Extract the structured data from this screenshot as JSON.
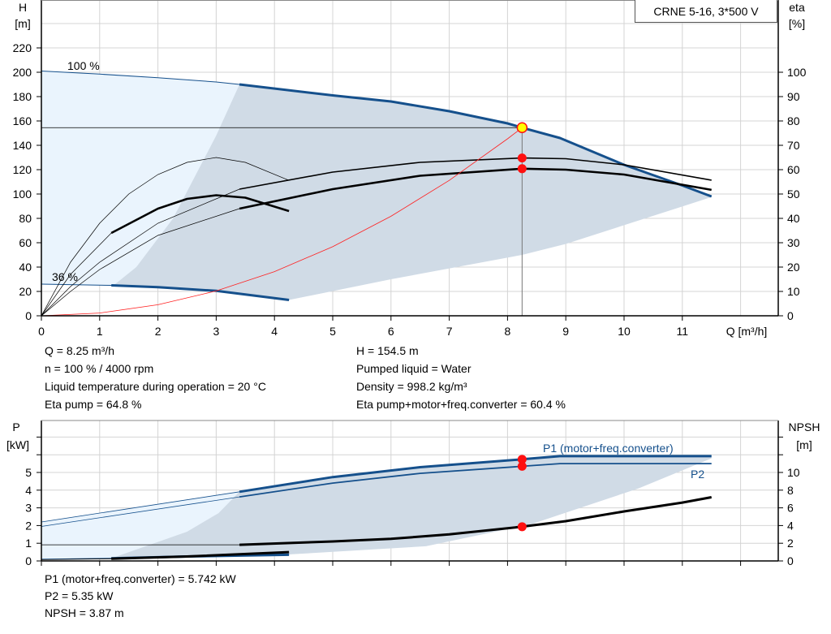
{
  "colors": {
    "pump_curve": "#15508c",
    "efficiency": "#000000",
    "system_curve": "#ff2020",
    "duty_point": "#ff1010",
    "duty_point_fill": "#ffff00",
    "operating_area": "#d0dbe6",
    "extended_area": "#eaf4fd",
    "grid": "#d4d4d4"
  },
  "chart_data": [
    {
      "type": "line",
      "title": "CRNE 5-16, 3*500 V",
      "xlabel": "Q [m³/h]",
      "ylabel": "H\n[m]",
      "ylabel_line1": "H",
      "ylabel_line2": "[m]",
      "y2label_line1": "eta",
      "y2label_line2": "[%]",
      "xlim": [
        0,
        12.6
      ],
      "ylim": [
        0,
        260
      ],
      "y2lim": [
        0,
        130
      ],
      "xticks": [
        0,
        1,
        2,
        3,
        4,
        5,
        6,
        7,
        8,
        9,
        10,
        11
      ],
      "yticks": [
        0,
        20,
        40,
        60,
        80,
        100,
        120,
        140,
        160,
        180,
        200,
        220
      ],
      "y2ticks": [
        0,
        10,
        20,
        30,
        40,
        50,
        60,
        70,
        80,
        90,
        100
      ],
      "grid": true,
      "series": [
        {
          "name": "100 %",
          "axis": "H",
          "kind": "head",
          "thick_range": [
            3.4,
            11.5
          ],
          "x": [
            0,
            1,
            2,
            3,
            3.4,
            5,
            6,
            7,
            8,
            8.25,
            8.9,
            10,
            11,
            11.5
          ],
          "y": [
            201,
            198.5,
            195.5,
            192,
            190,
            181,
            176,
            168,
            158,
            154.5,
            146,
            124,
            107,
            98
          ]
        },
        {
          "name": "36 %",
          "axis": "H",
          "kind": "head",
          "thick_range": [
            1.2,
            4.25
          ],
          "x": [
            0,
            1.2,
            2,
            3,
            4.25
          ],
          "y": [
            26,
            25,
            23.5,
            20.5,
            13
          ]
        },
        {
          "axis": "eta",
          "kind": "eta",
          "thick_range": [
            3.4,
            11.5
          ],
          "x": [
            0,
            0.5,
            1,
            2,
            3.4,
            5,
            6.5,
            8.25,
            9,
            10,
            11.5
          ],
          "y": [
            0,
            12,
            22,
            38,
            52,
            59,
            63,
            64.8,
            64.5,
            62,
            55.7
          ]
        },
        {
          "axis": "eta",
          "kind": "eta-thick",
          "thick_range": [
            3.4,
            11.5
          ],
          "x": [
            0,
            0.5,
            1,
            2,
            3.4,
            5,
            6.5,
            8.25,
            9,
            10,
            11.5
          ],
          "y": [
            0,
            10,
            19,
            33,
            44,
            52,
            57.5,
            60.4,
            60,
            58,
            51.7
          ]
        },
        {
          "axis": "eta",
          "kind": "eta",
          "thick_range": [
            9,
            9
          ],
          "x": [
            0,
            0.5,
            1,
            1.5,
            2,
            2.5,
            3,
            3.5,
            4.25
          ],
          "y": [
            0,
            22,
            38,
            50,
            58,
            63,
            65,
            63,
            55.6
          ]
        },
        {
          "axis": "eta",
          "kind": "eta-thick",
          "thick_range": [
            1.2,
            4.25
          ],
          "x": [
            0,
            0.5,
            1.2,
            2,
            2.5,
            3,
            3.5,
            4.25
          ],
          "y": [
            0,
            17,
            34,
            44,
            48,
            49.5,
            48.5,
            43
          ]
        },
        {
          "axis": "H",
          "kind": "system",
          "x": [
            0,
            1,
            2,
            3,
            4,
            5,
            6,
            7,
            8,
            8.25
          ],
          "y": [
            0,
            2.27,
            9.08,
            20.4,
            36.3,
            56.7,
            81.7,
            111.2,
            145.3,
            154.5
          ]
        }
      ],
      "operating_area": {
        "x": [
          1.24,
          1.63,
          2.26,
          3.0,
          3.4,
          5,
          6,
          7,
          8,
          8.25,
          8.9,
          10,
          11,
          11.5,
          11.5,
          9,
          8.25,
          6,
          4.25,
          3,
          2,
          1.2
        ],
        "y": [
          25,
          40,
          80,
          148,
          190,
          181,
          176,
          168,
          158,
          154.5,
          146,
          124,
          107,
          98,
          97.5,
          59,
          50,
          30,
          13,
          20.5,
          23.5,
          25
        ]
      },
      "duty_point": {
        "Q": 8.25,
        "H": 154.5,
        "eta_pump": 64.8,
        "eta_total": 60.4
      },
      "annotations": [
        "100 %",
        "36 %"
      ]
    },
    {
      "type": "line",
      "ylabel_line1": "P",
      "ylabel_line2": "[kW]",
      "y2label_line1": "NPSH",
      "y2label_line2": "[m]",
      "xlim": [
        0,
        12.6
      ],
      "ylim": [
        0,
        7.9
      ],
      "y2lim": [
        0,
        15.8
      ],
      "yticks": [
        0,
        1,
        2,
        3,
        4,
        5
      ],
      "ygrid": [
        0,
        1,
        2,
        3,
        4,
        5,
        6,
        7
      ],
      "y2ticks": [
        0,
        2,
        4,
        6,
        8,
        10
      ],
      "y2marks": [
        0,
        2,
        4,
        6,
        8,
        10,
        12,
        14
      ],
      "grid": true,
      "series": [
        {
          "name": "P1 (motor+freq.converter)",
          "axis": "P",
          "kind": "power",
          "thick_range": [
            3.4,
            11.5
          ],
          "x": [
            0,
            3.4,
            5,
            6.5,
            8.25,
            8.9,
            11.5
          ],
          "y": [
            2.2,
            3.91,
            4.74,
            5.3,
            5.742,
            5.92,
            5.92
          ]
        },
        {
          "name": "P2",
          "axis": "P",
          "kind": "power2",
          "thick_range": [
            3.4,
            11.5
          ],
          "x": [
            0,
            3.4,
            5,
            6.5,
            8.25,
            8.9,
            11.5
          ],
          "y": [
            1.95,
            3.62,
            4.4,
            4.95,
            5.35,
            5.5,
            5.5
          ]
        },
        {
          "axis": "NPSH",
          "kind": "npsh",
          "thick_range": [
            3.4,
            11.5
          ],
          "x": [
            0,
            3.4,
            5,
            6,
            7,
            8.25,
            9,
            10,
            11,
            11.5
          ],
          "y": [
            1.83,
            1.83,
            2.2,
            2.5,
            3.0,
            3.87,
            4.5,
            5.6,
            6.6,
            7.2
          ]
        },
        {
          "axis": "P",
          "kind": "power",
          "thick_range": [
            1.2,
            4.25
          ],
          "x": [
            0,
            1.2,
            2.5,
            4.25
          ],
          "y": [
            0.1,
            0.15,
            0.25,
            0.35
          ]
        },
        {
          "axis": "NPSH",
          "kind": "npsh",
          "thick_range": [
            1.2,
            4.25
          ],
          "x": [
            0,
            1.2,
            2.5,
            4.25
          ],
          "y": [
            0.15,
            0.25,
            0.5,
            1.0
          ]
        }
      ],
      "operating_area": {
        "x": [
          1.2,
          2.5,
          3.04,
          3.4,
          5,
          6.5,
          8.25,
          8.9,
          11.5,
          11.5,
          10.25,
          8.43,
          6.6,
          4.27,
          1.2
        ],
        "y": [
          0.15,
          1.65,
          2.7,
          3.91,
          4.74,
          5.3,
          5.742,
          5.92,
          5.92,
          5.8,
          4.1,
          2.1,
          0.83,
          0.37,
          0.15
        ]
      },
      "duty_point": {
        "Q": 8.25,
        "P1": 5.742,
        "P2": 5.35,
        "NPSH": 3.87
      }
    }
  ],
  "info": {
    "left": [
      "Q = 8.25 m³/h",
      "n = 100 % / 4000 rpm",
      "Liquid temperature during operation = 20 °C",
      "Eta pump = 64.8 %"
    ],
    "right": [
      "H = 154.5 m",
      "Pumped liquid = Water",
      "Density = 998.2 kg/m³",
      "Eta pump+motor+freq.converter = 60.4 %"
    ],
    "bottom": [
      "P1 (motor+freq.converter) = 5.742 kW",
      "P2 = 5.35 kW",
      "NPSH = 3.87 m"
    ]
  }
}
